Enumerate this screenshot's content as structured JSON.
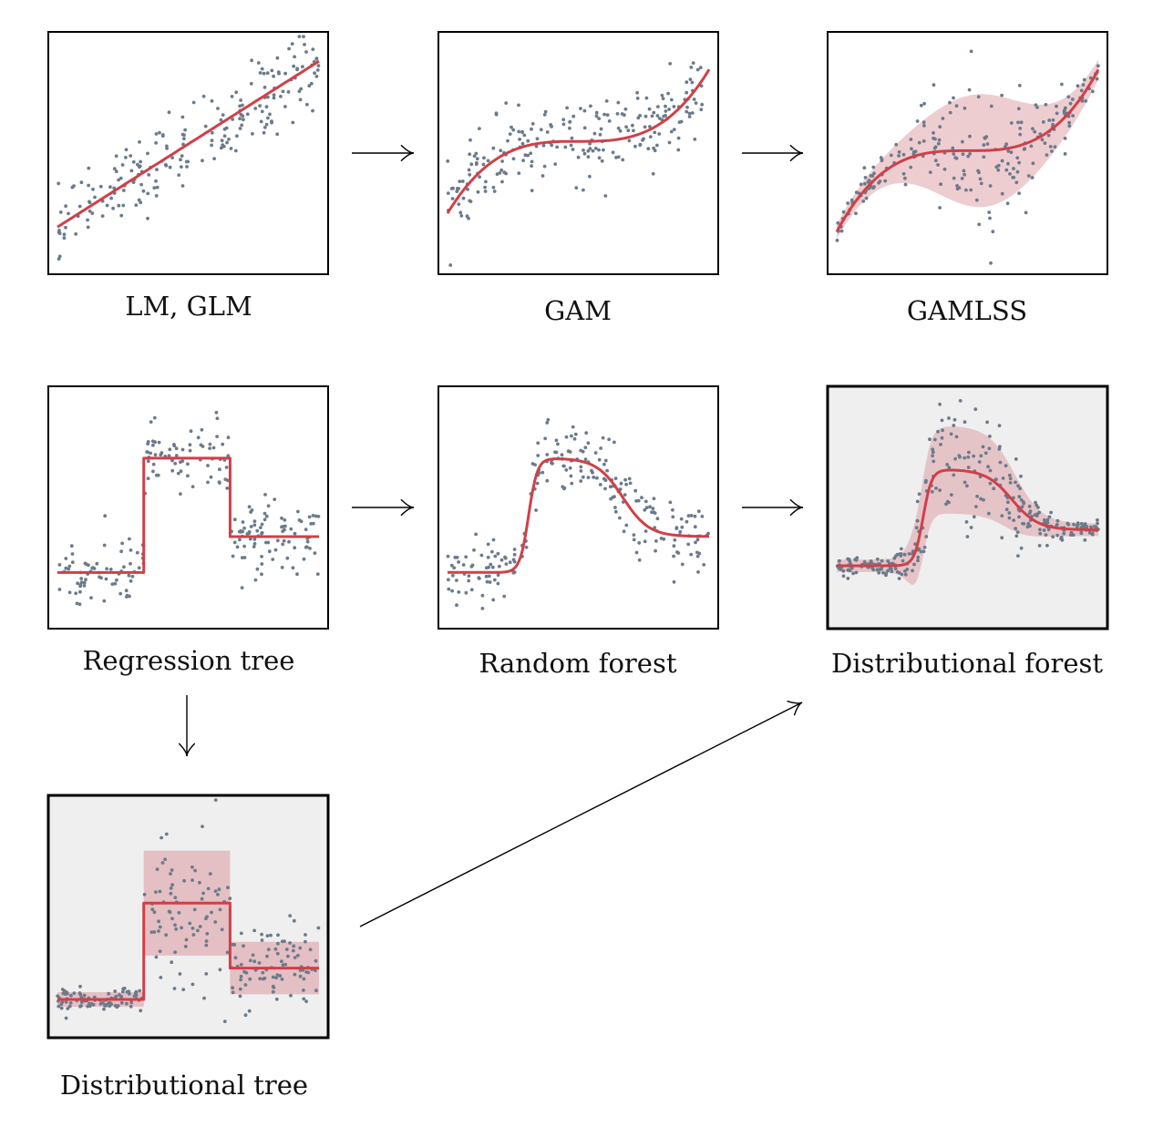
{
  "colors": {
    "fit_line": "#d04048",
    "band": "#d9909a",
    "points": "#6c7b8b",
    "highlight_background": "#efefef",
    "frame": "#000000"
  },
  "panels": [
    {
      "id": "lm",
      "caption": "LM, GLM",
      "fit": "linear",
      "band": "none",
      "highlighted": false
    },
    {
      "id": "gam",
      "caption": "GAM",
      "fit": "smooth-cubic",
      "band": "none",
      "highlighted": false
    },
    {
      "id": "gamlss",
      "caption": "GAMLSS",
      "fit": "smooth-cubic",
      "band": "smooth-varying-width",
      "highlighted": false
    },
    {
      "id": "regression-tree",
      "caption": "Regression tree",
      "fit": "step",
      "band": "none",
      "highlighted": false
    },
    {
      "id": "random-forest",
      "caption": "Random forest",
      "fit": "smoothed-step",
      "band": "none",
      "highlighted": false
    },
    {
      "id": "distributional-forest",
      "caption": "Distributional forest",
      "fit": "smoothed-step",
      "band": "smooth-varying-width",
      "highlighted": true
    },
    {
      "id": "distributional-tree",
      "caption": "Distributional tree",
      "fit": "step",
      "band": "step-varying-width",
      "highlighted": true
    }
  ],
  "arrows": [
    {
      "from": "lm",
      "to": "gam"
    },
    {
      "from": "gam",
      "to": "gamlss"
    },
    {
      "from": "regression-tree",
      "to": "random-forest"
    },
    {
      "from": "random-forest",
      "to": "distributional-forest"
    },
    {
      "from": "regression-tree",
      "to": "distributional-tree"
    },
    {
      "from": "distributional-tree",
      "to": "distributional-forest"
    }
  ]
}
